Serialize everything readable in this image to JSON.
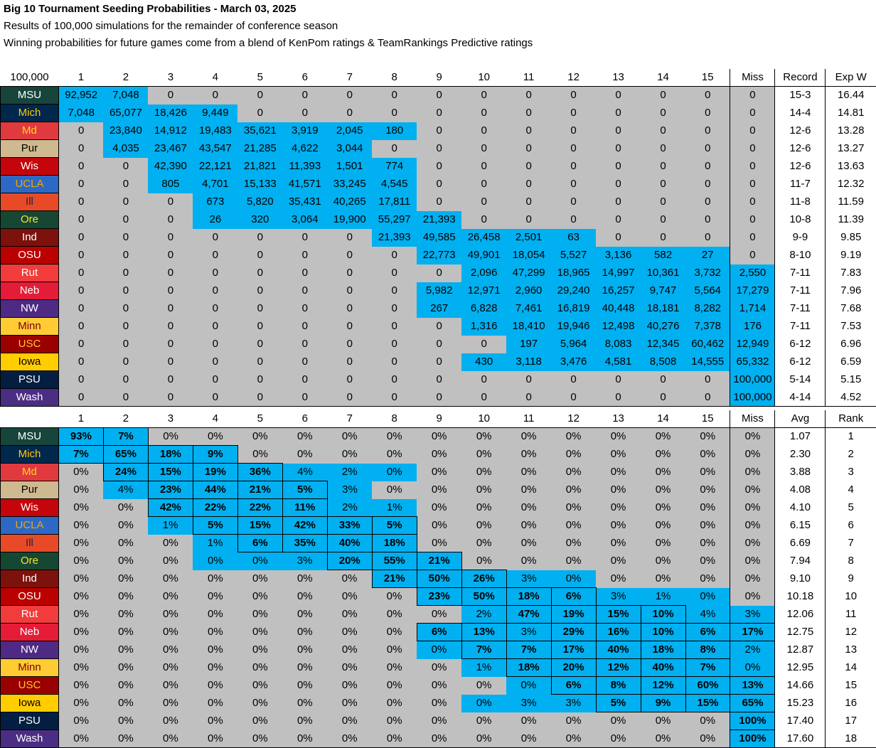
{
  "title": "Big 10 Tournament Seeding Probabilities - March 03, 2025",
  "subtitle1": "Results of 100,000 simulations for the remainder of conference season",
  "subtitle2": "Winning probabilities for future games come from a blend of KenPom ratings & TeamRankings Predictive ratings",
  "colors": {
    "blue": "#00b0f0",
    "gray": "#c0c0c0"
  },
  "table1": {
    "corner": "100,000",
    "headers": [
      "1",
      "2",
      "3",
      "4",
      "5",
      "6",
      "7",
      "8",
      "9",
      "10",
      "11",
      "12",
      "13",
      "14",
      "15",
      "Miss"
    ],
    "extra_headers": [
      "Record",
      "Exp W"
    ],
    "rows": [
      {
        "team": "MSU",
        "bg": "#18453b",
        "fg": "#ffffff",
        "cells": [
          "92,952",
          "7,048",
          "0",
          "0",
          "0",
          "0",
          "0",
          "0",
          "0",
          "0",
          "0",
          "0",
          "0",
          "0",
          "0",
          "0"
        ],
        "extra": [
          "15-3",
          "16.44"
        ]
      },
      {
        "team": "Mich",
        "bg": "#00274c",
        "fg": "#ffcb05",
        "cells": [
          "7,048",
          "65,077",
          "18,426",
          "9,449",
          "0",
          "0",
          "0",
          "0",
          "0",
          "0",
          "0",
          "0",
          "0",
          "0",
          "0",
          "0"
        ],
        "extra": [
          "14-4",
          "14.81"
        ]
      },
      {
        "team": "Md",
        "bg": "#e03a3e",
        "fg": "#ffd520",
        "cells": [
          "0",
          "23,840",
          "14,912",
          "19,483",
          "35,621",
          "3,919",
          "2,045",
          "180",
          "0",
          "0",
          "0",
          "0",
          "0",
          "0",
          "0",
          "0"
        ],
        "extra": [
          "12-6",
          "13.28"
        ]
      },
      {
        "team": "Pur",
        "bg": "#cfb991",
        "fg": "#000000",
        "cells": [
          "0",
          "4,035",
          "23,467",
          "43,547",
          "21,285",
          "4,622",
          "3,044",
          "0",
          "0",
          "0",
          "0",
          "0",
          "0",
          "0",
          "0",
          "0"
        ],
        "extra": [
          "12-6",
          "13.27"
        ]
      },
      {
        "team": "Wis",
        "bg": "#c5050c",
        "fg": "#ffffff",
        "cells": [
          "0",
          "0",
          "42,390",
          "22,121",
          "21,821",
          "11,393",
          "1,501",
          "774",
          "0",
          "0",
          "0",
          "0",
          "0",
          "0",
          "0",
          "0"
        ],
        "extra": [
          "12-6",
          "13.63"
        ]
      },
      {
        "team": "UCLA",
        "bg": "#2d68c4",
        "fg": "#f2a900",
        "cells": [
          "0",
          "0",
          "805",
          "4,701",
          "15,133",
          "41,571",
          "33,245",
          "4,545",
          "0",
          "0",
          "0",
          "0",
          "0",
          "0",
          "0",
          "0"
        ],
        "extra": [
          "11-7",
          "12.32"
        ]
      },
      {
        "team": "Ill",
        "bg": "#e84a27",
        "fg": "#13294b",
        "cells": [
          "0",
          "0",
          "0",
          "673",
          "5,820",
          "35,431",
          "40,265",
          "17,811",
          "0",
          "0",
          "0",
          "0",
          "0",
          "0",
          "0",
          "0"
        ],
        "extra": [
          "11-8",
          "11.59"
        ]
      },
      {
        "team": "Ore",
        "bg": "#154733",
        "fg": "#fee123",
        "cells": [
          "0",
          "0",
          "0",
          "26",
          "320",
          "3,064",
          "19,900",
          "55,297",
          "21,393",
          "0",
          "0",
          "0",
          "0",
          "0",
          "0",
          "0"
        ],
        "extra": [
          "10-8",
          "11.39"
        ]
      },
      {
        "team": "Ind",
        "bg": "#7d110c",
        "fg": "#ffffff",
        "cells": [
          "0",
          "0",
          "0",
          "0",
          "0",
          "0",
          "0",
          "21,393",
          "49,585",
          "26,458",
          "2,501",
          "63",
          "0",
          "0",
          "0",
          "0"
        ],
        "extra": [
          "9-9",
          "9.85"
        ]
      },
      {
        "team": "OSU",
        "bg": "#bb0000",
        "fg": "#ffffff",
        "cells": [
          "0",
          "0",
          "0",
          "0",
          "0",
          "0",
          "0",
          "0",
          "22,773",
          "49,901",
          "18,054",
          "5,527",
          "3,136",
          "582",
          "27",
          "0"
        ],
        "extra": [
          "8-10",
          "9.19"
        ]
      },
      {
        "team": "Rut",
        "bg": "#f23b3b",
        "fg": "#ffffff",
        "cells": [
          "0",
          "0",
          "0",
          "0",
          "0",
          "0",
          "0",
          "0",
          "0",
          "2,096",
          "47,299",
          "18,965",
          "14,997",
          "10,361",
          "3,732",
          "2,550"
        ],
        "extra": [
          "7-11",
          "7.83"
        ]
      },
      {
        "team": "Neb",
        "bg": "#e41c38",
        "fg": "#ffffff",
        "cells": [
          "0",
          "0",
          "0",
          "0",
          "0",
          "0",
          "0",
          "0",
          "5,982",
          "12,971",
          "2,960",
          "29,240",
          "16,257",
          "9,747",
          "5,564",
          "17,279"
        ],
        "extra": [
          "7-11",
          "7.96"
        ]
      },
      {
        "team": "NW",
        "bg": "#4e2a84",
        "fg": "#ffffff",
        "cells": [
          "0",
          "0",
          "0",
          "0",
          "0",
          "0",
          "0",
          "0",
          "267",
          "6,828",
          "7,461",
          "16,819",
          "40,448",
          "18,181",
          "8,282",
          "1,714"
        ],
        "extra": [
          "7-11",
          "7.68"
        ]
      },
      {
        "team": "Minn",
        "bg": "#ffcc33",
        "fg": "#7a0019",
        "cells": [
          "0",
          "0",
          "0",
          "0",
          "0",
          "0",
          "0",
          "0",
          "0",
          "1,316",
          "18,410",
          "19,946",
          "12,498",
          "40,276",
          "7,378",
          "176"
        ],
        "extra": [
          "7-11",
          "7.53"
        ]
      },
      {
        "team": "USC",
        "bg": "#990000",
        "fg": "#ffc72c",
        "cells": [
          "0",
          "0",
          "0",
          "0",
          "0",
          "0",
          "0",
          "0",
          "0",
          "0",
          "197",
          "5,964",
          "8,083",
          "12,345",
          "60,462",
          "12,949"
        ],
        "extra": [
          "6-12",
          "6.96"
        ]
      },
      {
        "team": "Iowa",
        "bg": "#ffcd00",
        "fg": "#000000",
        "cells": [
          "0",
          "0",
          "0",
          "0",
          "0",
          "0",
          "0",
          "0",
          "0",
          "430",
          "3,118",
          "3,476",
          "4,581",
          "8,508",
          "14,555",
          "65,332"
        ],
        "extra": [
          "6-12",
          "6.59"
        ]
      },
      {
        "team": "PSU",
        "bg": "#041e42",
        "fg": "#ffffff",
        "cells": [
          "0",
          "0",
          "0",
          "0",
          "0",
          "0",
          "0",
          "0",
          "0",
          "0",
          "0",
          "0",
          "0",
          "0",
          "0",
          "100,000"
        ],
        "extra": [
          "5-14",
          "5.15"
        ]
      },
      {
        "team": "Wash",
        "bg": "#4b2e83",
        "fg": "#ffffff",
        "cells": [
          "0",
          "0",
          "0",
          "0",
          "0",
          "0",
          "0",
          "0",
          "0",
          "0",
          "0",
          "0",
          "0",
          "0",
          "0",
          "100,000"
        ],
        "extra": [
          "4-14",
          "4.52"
        ]
      }
    ]
  },
  "table2": {
    "corner": "",
    "headers": [
      "1",
      "2",
      "3",
      "4",
      "5",
      "6",
      "7",
      "8",
      "9",
      "10",
      "11",
      "12",
      "13",
      "14",
      "15",
      "Miss"
    ],
    "extra_headers": [
      "Avg",
      "Rank"
    ],
    "rows": [
      {
        "team": "MSU",
        "bg": "#18453b",
        "fg": "#ffffff",
        "cells": [
          "93%",
          "7%",
          "0%",
          "0%",
          "0%",
          "0%",
          "0%",
          "0%",
          "0%",
          "0%",
          "0%",
          "0%",
          "0%",
          "0%",
          "0%",
          "0%"
        ],
        "extra": [
          "1.07",
          "1"
        ]
      },
      {
        "team": "Mich",
        "bg": "#00274c",
        "fg": "#ffcb05",
        "cells": [
          "7%",
          "65%",
          "18%",
          "9%",
          "0%",
          "0%",
          "0%",
          "0%",
          "0%",
          "0%",
          "0%",
          "0%",
          "0%",
          "0%",
          "0%",
          "0%"
        ],
        "extra": [
          "2.30",
          "2"
        ]
      },
      {
        "team": "Md",
        "bg": "#e03a3e",
        "fg": "#ffd520",
        "cells": [
          "0%",
          "24%",
          "15%",
          "19%",
          "36%",
          "4%",
          "2%",
          "0%",
          "0%",
          "0%",
          "0%",
          "0%",
          "0%",
          "0%",
          "0%",
          "0%"
        ],
        "extra": [
          "3.88",
          "3"
        ]
      },
      {
        "team": "Pur",
        "bg": "#cfb991",
        "fg": "#000000",
        "cells": [
          "0%",
          "4%",
          "23%",
          "44%",
          "21%",
          "5%",
          "3%",
          "0%",
          "0%",
          "0%",
          "0%",
          "0%",
          "0%",
          "0%",
          "0%",
          "0%"
        ],
        "extra": [
          "4.08",
          "4"
        ]
      },
      {
        "team": "Wis",
        "bg": "#c5050c",
        "fg": "#ffffff",
        "cells": [
          "0%",
          "0%",
          "42%",
          "22%",
          "22%",
          "11%",
          "2%",
          "1%",
          "0%",
          "0%",
          "0%",
          "0%",
          "0%",
          "0%",
          "0%",
          "0%"
        ],
        "extra": [
          "4.10",
          "5"
        ]
      },
      {
        "team": "UCLA",
        "bg": "#2d68c4",
        "fg": "#f2a900",
        "cells": [
          "0%",
          "0%",
          "1%",
          "5%",
          "15%",
          "42%",
          "33%",
          "5%",
          "0%",
          "0%",
          "0%",
          "0%",
          "0%",
          "0%",
          "0%",
          "0%"
        ],
        "extra": [
          "6.15",
          "6"
        ]
      },
      {
        "team": "Ill",
        "bg": "#e84a27",
        "fg": "#13294b",
        "cells": [
          "0%",
          "0%",
          "0%",
          "1%",
          "6%",
          "35%",
          "40%",
          "18%",
          "0%",
          "0%",
          "0%",
          "0%",
          "0%",
          "0%",
          "0%",
          "0%"
        ],
        "extra": [
          "6.69",
          "7"
        ]
      },
      {
        "team": "Ore",
        "bg": "#154733",
        "fg": "#fee123",
        "cells": [
          "0%",
          "0%",
          "0%",
          "0%",
          "0%",
          "3%",
          "20%",
          "55%",
          "21%",
          "0%",
          "0%",
          "0%",
          "0%",
          "0%",
          "0%",
          "0%"
        ],
        "extra": [
          "7.94",
          "8"
        ]
      },
      {
        "team": "Ind",
        "bg": "#7d110c",
        "fg": "#ffffff",
        "cells": [
          "0%",
          "0%",
          "0%",
          "0%",
          "0%",
          "0%",
          "0%",
          "21%",
          "50%",
          "26%",
          "3%",
          "0%",
          "0%",
          "0%",
          "0%",
          "0%"
        ],
        "extra": [
          "9.10",
          "9"
        ]
      },
      {
        "team": "OSU",
        "bg": "#bb0000",
        "fg": "#ffffff",
        "cells": [
          "0%",
          "0%",
          "0%",
          "0%",
          "0%",
          "0%",
          "0%",
          "0%",
          "23%",
          "50%",
          "18%",
          "6%",
          "3%",
          "1%",
          "0%",
          "0%"
        ],
        "extra": [
          "10.18",
          "10"
        ]
      },
      {
        "team": "Rut",
        "bg": "#f23b3b",
        "fg": "#ffffff",
        "cells": [
          "0%",
          "0%",
          "0%",
          "0%",
          "0%",
          "0%",
          "0%",
          "0%",
          "0%",
          "2%",
          "47%",
          "19%",
          "15%",
          "10%",
          "4%",
          "3%"
        ],
        "extra": [
          "12.06",
          "11"
        ]
      },
      {
        "team": "Neb",
        "bg": "#e41c38",
        "fg": "#ffffff",
        "cells": [
          "0%",
          "0%",
          "0%",
          "0%",
          "0%",
          "0%",
          "0%",
          "0%",
          "6%",
          "13%",
          "3%",
          "29%",
          "16%",
          "10%",
          "6%",
          "17%"
        ],
        "extra": [
          "12.75",
          "12"
        ]
      },
      {
        "team": "NW",
        "bg": "#4e2a84",
        "fg": "#ffffff",
        "cells": [
          "0%",
          "0%",
          "0%",
          "0%",
          "0%",
          "0%",
          "0%",
          "0%",
          "0%",
          "7%",
          "7%",
          "17%",
          "40%",
          "18%",
          "8%",
          "2%"
        ],
        "extra": [
          "12.87",
          "13"
        ]
      },
      {
        "team": "Minn",
        "bg": "#ffcc33",
        "fg": "#7a0019",
        "cells": [
          "0%",
          "0%",
          "0%",
          "0%",
          "0%",
          "0%",
          "0%",
          "0%",
          "0%",
          "1%",
          "18%",
          "20%",
          "12%",
          "40%",
          "7%",
          "0%"
        ],
        "extra": [
          "12.95",
          "14"
        ]
      },
      {
        "team": "USC",
        "bg": "#990000",
        "fg": "#ffc72c",
        "cells": [
          "0%",
          "0%",
          "0%",
          "0%",
          "0%",
          "0%",
          "0%",
          "0%",
          "0%",
          "0%",
          "0%",
          "6%",
          "8%",
          "12%",
          "60%",
          "13%"
        ],
        "extra": [
          "14.66",
          "15"
        ]
      },
      {
        "team": "Iowa",
        "bg": "#ffcd00",
        "fg": "#000000",
        "cells": [
          "0%",
          "0%",
          "0%",
          "0%",
          "0%",
          "0%",
          "0%",
          "0%",
          "0%",
          "0%",
          "3%",
          "3%",
          "5%",
          "9%",
          "15%",
          "65%"
        ],
        "extra": [
          "15.23",
          "16"
        ]
      },
      {
        "team": "PSU",
        "bg": "#041e42",
        "fg": "#ffffff",
        "cells": [
          "0%",
          "0%",
          "0%",
          "0%",
          "0%",
          "0%",
          "0%",
          "0%",
          "0%",
          "0%",
          "0%",
          "0%",
          "0%",
          "0%",
          "0%",
          "100%"
        ],
        "extra": [
          "17.40",
          "17"
        ]
      },
      {
        "team": "Wash",
        "bg": "#4b2e83",
        "fg": "#ffffff",
        "cells": [
          "0%",
          "0%",
          "0%",
          "0%",
          "0%",
          "0%",
          "0%",
          "0%",
          "0%",
          "0%",
          "0%",
          "0%",
          "0%",
          "0%",
          "0%",
          "100%"
        ],
        "extra": [
          "17.60",
          "18"
        ]
      }
    ]
  }
}
